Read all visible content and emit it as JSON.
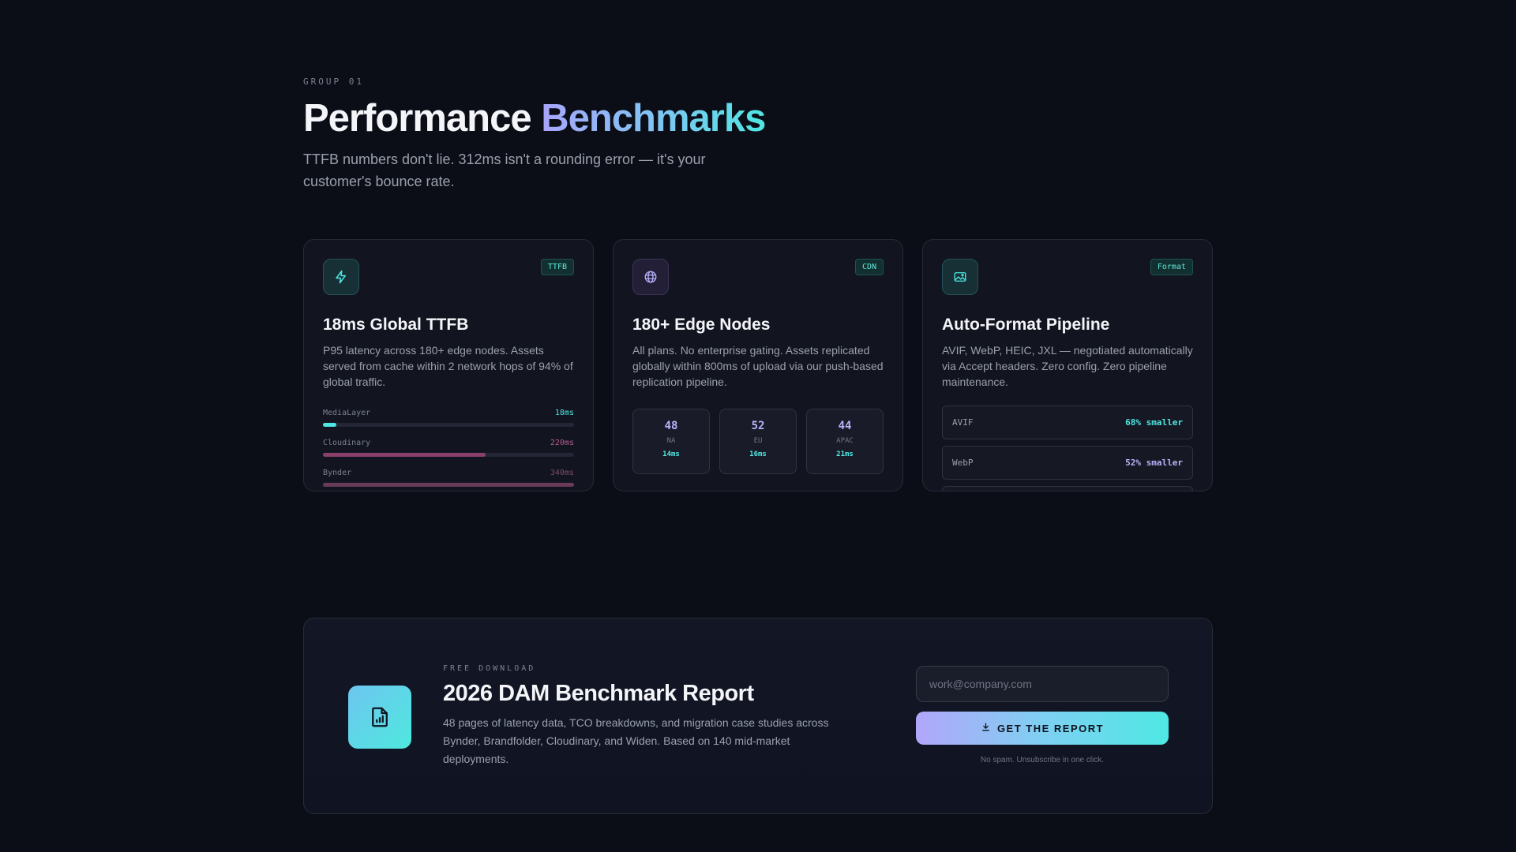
{
  "header": {
    "eyebrow": "GROUP 01",
    "title_plain": "Performance ",
    "title_accent": "Benchmarks",
    "subtitle": "TTFB numbers don't lie. 312ms isn't a rounding error — it's your customer's bounce rate."
  },
  "cards": [
    {
      "icon": "lightning-icon",
      "tag": "TTFB",
      "title": "18ms Global TTFB",
      "description": "P95 latency across 180+ edge nodes. Assets served from cache within 2 network hops of 94% of global traffic.",
      "bars": [
        {
          "name": "MediaLayer",
          "value_label": "18ms",
          "fraction": 0.053,
          "color": "#4fe6e2"
        },
        {
          "name": "Cloudinary",
          "value_label": "220ms",
          "fraction": 0.647,
          "color": "#8a3f6d"
        },
        {
          "name": "Bynder",
          "value_label": "340ms",
          "fraction": 1.0,
          "color": "#6a3a5a"
        }
      ]
    },
    {
      "icon": "globe-icon",
      "tag": "CDN",
      "title": "180+ Edge Nodes",
      "description": "All plans. No enterprise gating. Assets replicated globally within 800ms of upload via our push-based replication pipeline.",
      "regions": [
        {
          "count": "48",
          "code": "NA",
          "latency": "14ms"
        },
        {
          "count": "52",
          "code": "EU",
          "latency": "16ms"
        },
        {
          "count": "44",
          "code": "APAC",
          "latency": "21ms"
        }
      ]
    },
    {
      "icon": "image-icon",
      "tag": "Format",
      "title": "Auto-Format Pipeline",
      "description": "AVIF, WebP, HEIC, JXL — negotiated automatically via Accept headers. Zero config. Zero pipeline maintenance.",
      "formats": [
        {
          "name": "AVIF",
          "saving": "68% smaller",
          "color": "#4fe6e2"
        },
        {
          "name": "WebP",
          "saving": "52% smaller",
          "color": "#b7b2fb"
        }
      ]
    }
  ],
  "cta": {
    "eyebrow": "FREE DOWNLOAD",
    "title": "2026 DAM Benchmark Report",
    "description": "48 pages of latency data, TCO breakdowns, and migration case studies across Bynder, Brandfolder, Cloudinary, and Widen. Based on 140 mid-market deployments.",
    "email_placeholder": "work@company.com",
    "button_label": "GET THE REPORT",
    "fine_print": "No spam. Unsubscribe in one click."
  }
}
